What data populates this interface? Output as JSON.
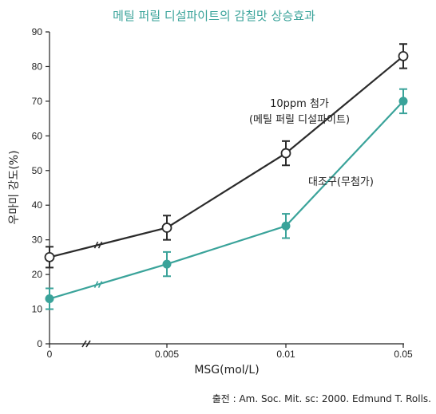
{
  "chart_data": {
    "type": "line",
    "title": "메틸 퍼릴 디설파이트의 감칠맛 상승효과",
    "xlabel": "MSG(mol/L)",
    "ylabel": "우마미 강도(%)",
    "categories": [
      "0",
      "0.005",
      "0.01",
      "0.05"
    ],
    "ylim": [
      0,
      90
    ],
    "yticks": [
      "0",
      "10",
      "20",
      "30",
      "40",
      "50",
      "60",
      "70",
      "80",
      "90"
    ],
    "axis_break": true,
    "series": [
      {
        "name": "10ppm 첨가\n(메틸 퍼릴 디설파이트)",
        "label_lines": [
          "10ppm 첨가",
          "(메틸 퍼릴 디설파이트)"
        ],
        "color": "#2b2b2b",
        "marker": "open-circle",
        "values": [
          25,
          33.5,
          55,
          83
        ],
        "error": [
          3,
          3.5,
          3.5,
          3.5
        ]
      },
      {
        "name": "대조구(무첨가)",
        "label_lines": [
          "대조구(무첨가)"
        ],
        "color": "#3aa39a",
        "marker": "filled-circle",
        "values": [
          13,
          23,
          34,
          70
        ],
        "error": [
          3,
          3.5,
          3.5,
          3.5
        ]
      }
    ],
    "grid": false,
    "legend": "inline annotations"
  },
  "source": "출전 : Am. Soc. Mit. sc: 2000. Edmund T. Rolls.",
  "colors": {
    "title": "#3aa39a",
    "axis": "#222222"
  }
}
